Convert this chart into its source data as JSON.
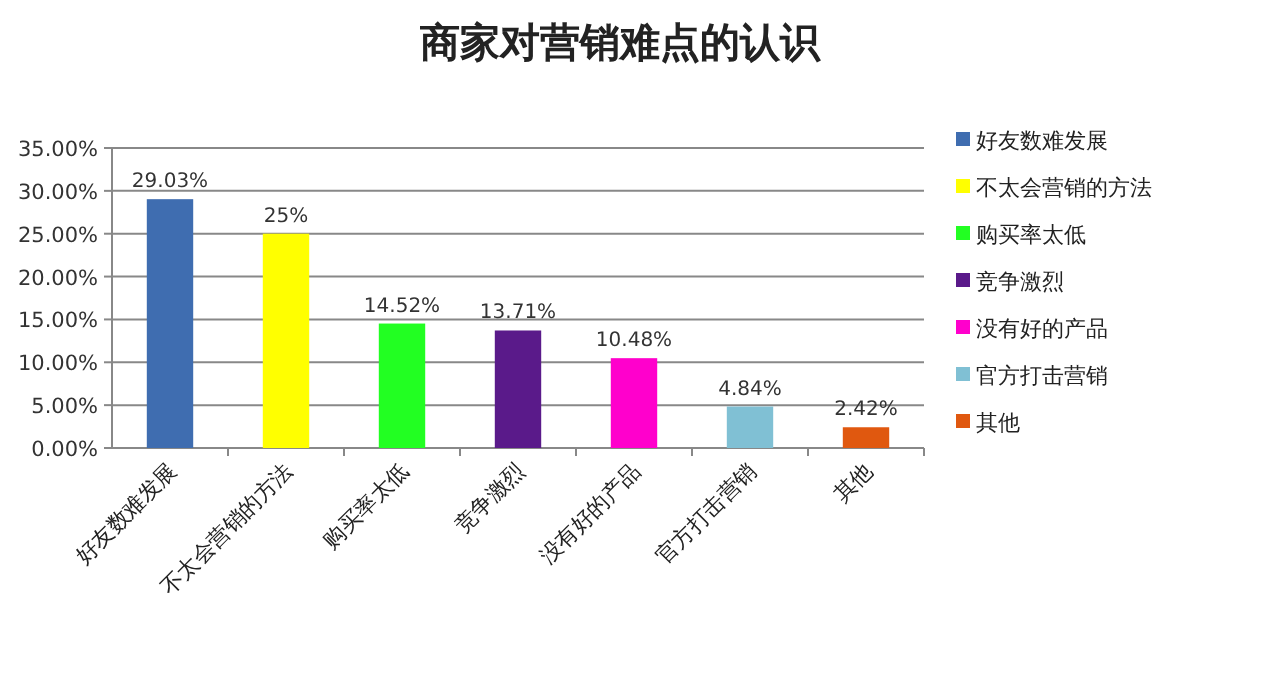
{
  "chart_data": {
    "type": "bar",
    "title": "商家对营销难点的认识",
    "categories": [
      "好友数难发展",
      "不太会营销的方法",
      "购买率太低",
      "竞争激烈",
      "没有好的产品",
      "官方打击营销",
      "其他"
    ],
    "series": [
      {
        "name": "好友数难发展",
        "color": "#3f6db0",
        "values": [
          29.03,
          null,
          null,
          null,
          null,
          null,
          null
        ],
        "value_labels": [
          "29.03%",
          null,
          null,
          null,
          null,
          null,
          null
        ]
      },
      {
        "name": "不太会营销的方法",
        "color": "#ffff00",
        "values": [
          null,
          25,
          null,
          null,
          null,
          null,
          null
        ],
        "value_labels": [
          null,
          "25%",
          null,
          null,
          null,
          null,
          null
        ]
      },
      {
        "name": "购买率太低",
        "color": "#22ff22",
        "values": [
          null,
          null,
          14.52,
          null,
          null,
          null,
          null
        ],
        "value_labels": [
          null,
          null,
          "14.52%",
          null,
          null,
          null,
          null
        ]
      },
      {
        "name": "竞争激烈",
        "color": "#5a1a8a",
        "values": [
          null,
          null,
          null,
          13.71,
          null,
          null,
          null
        ],
        "value_labels": [
          null,
          null,
          null,
          "13.71%",
          null,
          null,
          null
        ]
      },
      {
        "name": "没有好的产品",
        "color": "#ff00cc",
        "values": [
          null,
          null,
          null,
          null,
          10.48,
          null,
          null
        ],
        "value_labels": [
          null,
          null,
          null,
          null,
          "10.48%",
          null,
          null
        ]
      },
      {
        "name": "官方打击营销",
        "color": "#80c0d4",
        "values": [
          null,
          null,
          null,
          null,
          null,
          4.84,
          null
        ],
        "value_labels": [
          null,
          null,
          null,
          null,
          null,
          "4.84%",
          null
        ]
      },
      {
        "name": "其他",
        "color": "#e0580f",
        "values": [
          null,
          null,
          null,
          null,
          null,
          null,
          2.42
        ],
        "value_labels": [
          null,
          null,
          null,
          null,
          null,
          null,
          "2.42%"
        ]
      }
    ],
    "ylim": [
      0,
      35
    ],
    "yticks": [
      {
        "value": 0,
        "label": "0.00%"
      },
      {
        "value": 5,
        "label": "5.00%"
      },
      {
        "value": 10,
        "label": "10.00%"
      },
      {
        "value": 15,
        "label": "15.00%"
      },
      {
        "value": 20,
        "label": "20.00%"
      },
      {
        "value": 25,
        "label": "25.00%"
      },
      {
        "value": 30,
        "label": "30.00%"
      },
      {
        "value": 35,
        "label": "35.00%"
      }
    ],
    "grid": "y",
    "legend": "right"
  }
}
